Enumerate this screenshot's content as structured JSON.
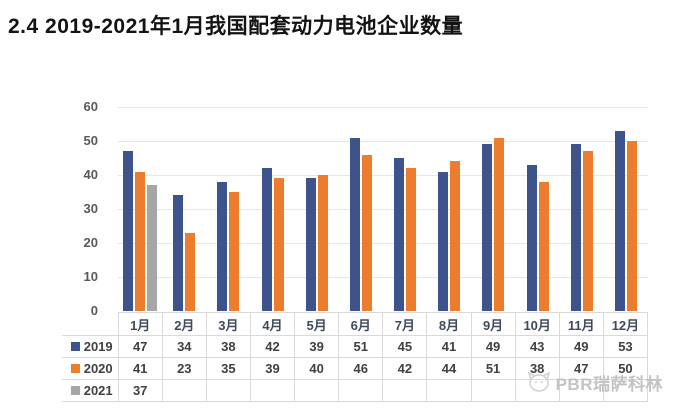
{
  "title": "2.4 2019-2021年1月我国配套动力电池企业数量",
  "watermark": {
    "text": "PBR瑞萨科林",
    "icon": "cat-face"
  },
  "colors": {
    "series_2019": "#3e538c",
    "series_2020": "#ec7d2f",
    "series_2021": "#a6a6a6",
    "gridline": "#e7e7e7",
    "axis_text": "#595959",
    "table_border": "#d9d9d9",
    "table_text": "#404040"
  },
  "chart_data": {
    "type": "bar",
    "title": "2.4 2019-2021年1月我国配套动力电池企业数量",
    "xlabel": "",
    "ylabel": "",
    "ylim": [
      0,
      60
    ],
    "ytick_step": 10,
    "grid": true,
    "legend_position": "table-left",
    "categories": [
      "1月",
      "2月",
      "3月",
      "4月",
      "5月",
      "6月",
      "7月",
      "8月",
      "9月",
      "10月",
      "11月",
      "12月"
    ],
    "series": [
      {
        "name": "2019",
        "color": "#3e538c",
        "values": [
          47,
          34,
          38,
          42,
          39,
          51,
          45,
          41,
          49,
          43,
          49,
          53
        ]
      },
      {
        "name": "2020",
        "color": "#ec7d2f",
        "values": [
          41,
          23,
          35,
          39,
          40,
          46,
          42,
          44,
          51,
          38,
          47,
          50
        ]
      },
      {
        "name": "2021",
        "color": "#a6a6a6",
        "values": [
          37,
          null,
          null,
          null,
          null,
          null,
          null,
          null,
          null,
          null,
          null,
          null
        ]
      }
    ]
  }
}
